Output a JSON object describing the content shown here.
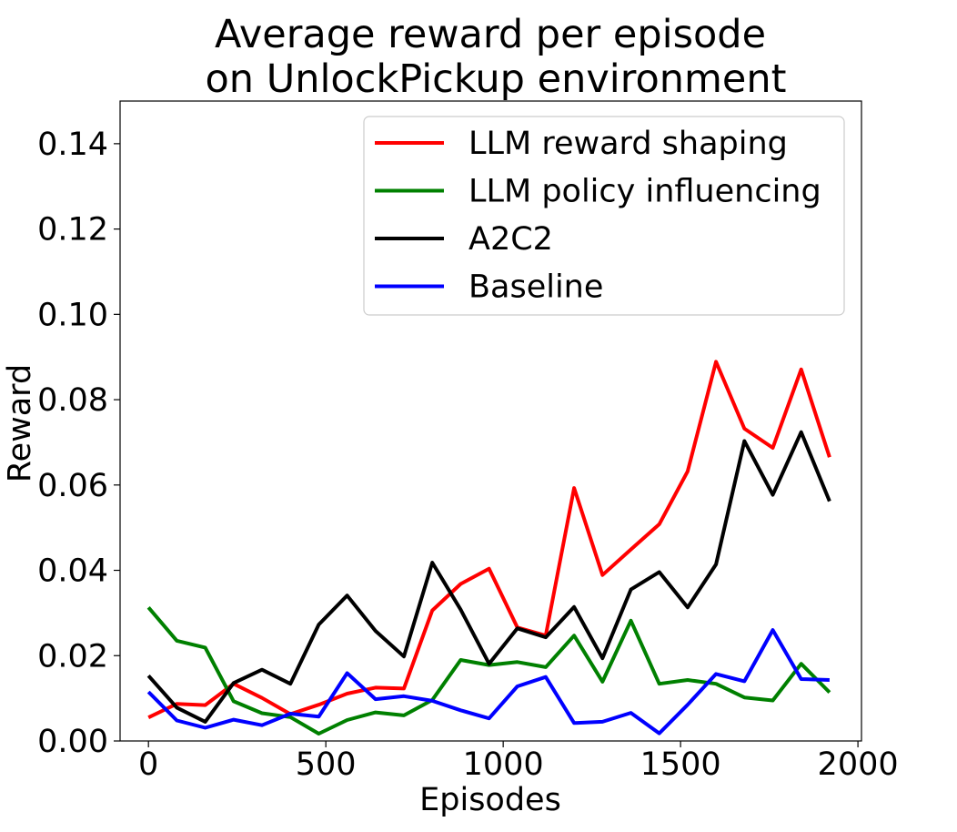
{
  "chart_data": {
    "type": "line",
    "title_line1": "Average reward per episode",
    "title_line2": "on UnlockPickup environment",
    "xlabel": "Episodes",
    "ylabel": "Reward",
    "xlim": [
      -80,
      2010
    ],
    "ylim": [
      0,
      0.15
    ],
    "xticks": [
      0,
      500,
      1000,
      1500,
      2000
    ],
    "xtick_labels": [
      "0",
      "500",
      "1000",
      "1500",
      "2000"
    ],
    "yticks": [
      0,
      0.02,
      0.04,
      0.06,
      0.08,
      0.1,
      0.12,
      0.14
    ],
    "ytick_labels": [
      "0.00",
      "0.02",
      "0.04",
      "0.06",
      "0.08",
      "0.10",
      "0.12",
      "0.14"
    ],
    "grid": false,
    "legend_position": "top-right",
    "x": [
      0,
      80,
      160,
      240,
      320,
      400,
      480,
      560,
      640,
      720,
      800,
      880,
      960,
      1040,
      1120,
      1200,
      1280,
      1360,
      1440,
      1520,
      1600,
      1680,
      1760,
      1840,
      1920
    ],
    "series": [
      {
        "name": "LLM reward shaping",
        "color": "#ff0000",
        "values": [
          0.0055,
          0.0087,
          0.0084,
          0.0134,
          0.0101,
          0.0063,
          0.0085,
          0.0111,
          0.0125,
          0.0123,
          0.0306,
          0.0368,
          0.0404,
          0.0266,
          0.0247,
          0.0593,
          0.0389,
          0.0449,
          0.0508,
          0.0632,
          0.0889,
          0.0732,
          0.0687,
          0.0871,
          0.0665
        ]
      },
      {
        "name": "LLM policy influencing",
        "color": "#008000",
        "values": [
          0.0313,
          0.0235,
          0.0219,
          0.0093,
          0.0065,
          0.0056,
          0.0017,
          0.0049,
          0.0067,
          0.006,
          0.0096,
          0.019,
          0.0178,
          0.0185,
          0.0173,
          0.0247,
          0.0139,
          0.0282,
          0.0134,
          0.0143,
          0.0134,
          0.0102,
          0.0095,
          0.0181,
          0.0114
        ]
      },
      {
        "name": "A2C2",
        "color": "#000000",
        "values": [
          0.0153,
          0.0078,
          0.0045,
          0.0136,
          0.0167,
          0.0134,
          0.0273,
          0.0341,
          0.0258,
          0.0198,
          0.0418,
          0.0308,
          0.0181,
          0.0264,
          0.0243,
          0.0314,
          0.0194,
          0.0355,
          0.0396,
          0.0313,
          0.0414,
          0.0703,
          0.0577,
          0.0724,
          0.0562
        ]
      },
      {
        "name": "Baseline",
        "color": "#0000ff",
        "values": [
          0.0115,
          0.0048,
          0.0031,
          0.005,
          0.0037,
          0.0064,
          0.0057,
          0.0159,
          0.0098,
          0.0105,
          0.0094,
          0.0072,
          0.0053,
          0.0128,
          0.015,
          0.0042,
          0.0045,
          0.0066,
          0.0018,
          0.0085,
          0.0157,
          0.014,
          0.026,
          0.0145,
          0.0143
        ]
      }
    ]
  }
}
